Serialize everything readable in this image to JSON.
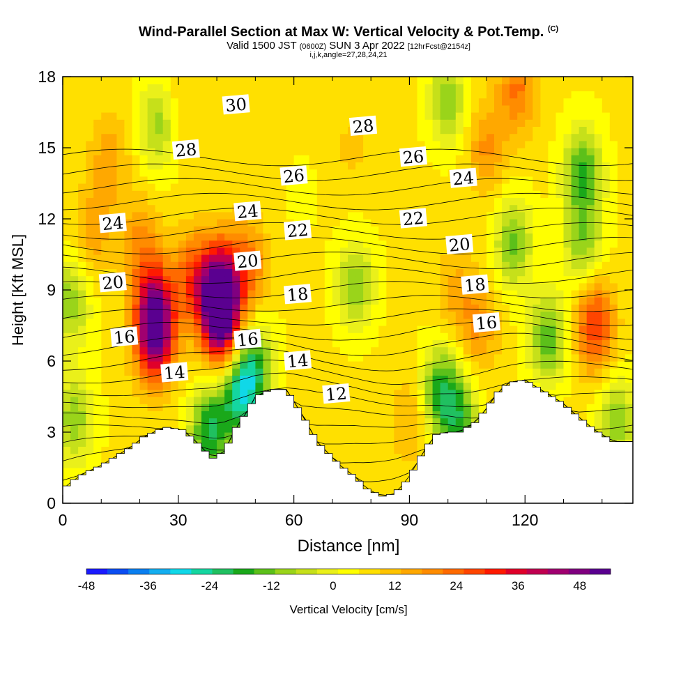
{
  "title": {
    "main": "Wind-Parallel Section at Max W: Vertical Velocity & Pot.Temp.",
    "copyright": "(C)",
    "valid_a": "Valid 1500 JST",
    "valid_b": "(0600Z)",
    "valid_c": "SUN 3 Apr 2022",
    "valid_d": "[12hrFcst@2154z]",
    "indices": "i,j,k,angle=27,28,24,21"
  },
  "chart_data": {
    "type": "heatmap",
    "title": "Wind-Parallel Section at Max W: Vertical Velocity & Pot.Temp.",
    "xlabel": "Distance [nm]",
    "ylabel": "Height [Kft MSL]",
    "xlim": [
      0,
      148
    ],
    "ylim": [
      0,
      18
    ],
    "x_ticks": [
      "0",
      "30",
      "60",
      "90",
      "120"
    ],
    "x_tick_values": [
      0,
      30,
      60,
      90,
      120
    ],
    "y_ticks": [
      "0",
      "3",
      "6",
      "9",
      "12",
      "15",
      "18"
    ],
    "y_tick_values": [
      0,
      3,
      6,
      9,
      12,
      15,
      18
    ],
    "colorbar": {
      "label": "Vertical Velocity [cm/s]",
      "range": [
        -48,
        54
      ],
      "tick_labels": [
        "-48",
        "-36",
        "-24",
        "-12",
        "0",
        "12",
        "24",
        "36",
        "48"
      ],
      "tick_values": [
        -48,
        -36,
        -24,
        -12,
        0,
        12,
        24,
        36,
        48
      ],
      "colors": [
        "#1a1aff",
        "#0b4df2",
        "#0a7ff0",
        "#13aef0",
        "#10d8e8",
        "#14d6a0",
        "#20c060",
        "#1aa81a",
        "#5cc01a",
        "#9ad41a",
        "#c6e01a",
        "#eaf01a",
        "#ffff00",
        "#ffe000",
        "#ffc400",
        "#ffa800",
        "#ff8c00",
        "#ff6a00",
        "#ff4500",
        "#ff1a00",
        "#e0002a",
        "#c00050",
        "#a00070",
        "#800080",
        "#5a0090"
      ]
    },
    "vertical_velocity_cells": [
      {
        "x": 24,
        "y": 7.0,
        "w": 44
      },
      {
        "x": 24,
        "y": 8.5,
        "w": 32
      },
      {
        "x": 41,
        "y": 7.8,
        "w": 52
      },
      {
        "x": 41,
        "y": 9.3,
        "w": 38
      },
      {
        "x": 34,
        "y": 9.5,
        "w": 26
      },
      {
        "x": 48,
        "y": 10.0,
        "w": 22
      },
      {
        "x": 20,
        "y": 11.0,
        "w": 18
      },
      {
        "x": 8,
        "y": 11.5,
        "w": 16
      },
      {
        "x": 12,
        "y": 14.5,
        "w": 16
      },
      {
        "x": 30,
        "y": 16.5,
        "w": 12
      },
      {
        "x": 110,
        "y": 15.0,
        "w": 18
      },
      {
        "x": 118,
        "y": 17.5,
        "w": 22
      },
      {
        "x": 138,
        "y": 7.5,
        "w": 30
      },
      {
        "x": 108,
        "y": 7.5,
        "w": 18
      },
      {
        "x": 102,
        "y": 9.0,
        "w": 14
      },
      {
        "x": 90,
        "y": 3.5,
        "w": 14
      },
      {
        "x": 2,
        "y": 8.5,
        "w": -10
      },
      {
        "x": 25,
        "y": 16.0,
        "w": -10
      },
      {
        "x": 46,
        "y": 4.5,
        "w": -22
      },
      {
        "x": 38,
        "y": 3.0,
        "w": -20
      },
      {
        "x": 50,
        "y": 5.8,
        "w": -14
      },
      {
        "x": 76,
        "y": 9.2,
        "w": -10
      },
      {
        "x": 98,
        "y": 4.8,
        "w": -16
      },
      {
        "x": 103,
        "y": 3.5,
        "w": -14
      },
      {
        "x": 100,
        "y": 17.0,
        "w": -10
      },
      {
        "x": 117,
        "y": 11.0,
        "w": -12
      },
      {
        "x": 126,
        "y": 7.0,
        "w": -14
      },
      {
        "x": 135,
        "y": 14.0,
        "w": -16
      },
      {
        "x": 135,
        "y": 11.0,
        "w": -10
      },
      {
        "x": 3,
        "y": 3.5,
        "w": -10
      },
      {
        "x": 144,
        "y": 3.5,
        "w": -10
      },
      {
        "x": 62,
        "y": 13.0,
        "w": 4
      },
      {
        "x": 75,
        "y": 15.0,
        "w": 10
      }
    ],
    "terrain": [
      [
        0,
        0.6
      ],
      [
        3,
        1.0
      ],
      [
        6,
        1.3
      ],
      [
        10,
        1.6
      ],
      [
        14,
        2.0
      ],
      [
        18,
        2.4
      ],
      [
        21,
        2.8
      ],
      [
        25,
        3.1
      ],
      [
        27,
        3.2
      ],
      [
        31,
        3.1
      ],
      [
        34,
        2.7
      ],
      [
        37,
        2.2
      ],
      [
        39,
        1.9
      ],
      [
        42,
        2.2
      ],
      [
        45,
        3.2
      ],
      [
        48,
        3.9
      ],
      [
        50,
        4.5
      ],
      [
        54,
        4.8
      ],
      [
        58,
        4.8
      ],
      [
        60,
        4.3
      ],
      [
        63,
        3.5
      ],
      [
        66,
        2.6
      ],
      [
        69,
        2.1
      ],
      [
        72,
        1.6
      ],
      [
        76,
        1.1
      ],
      [
        79,
        0.6
      ],
      [
        83,
        0.3
      ],
      [
        86,
        0.4
      ],
      [
        89,
        0.9
      ],
      [
        91,
        1.4
      ],
      [
        93,
        2.0
      ],
      [
        95,
        2.5
      ],
      [
        97,
        2.9
      ],
      [
        100,
        3.0
      ],
      [
        103,
        3.0
      ],
      [
        107,
        3.4
      ],
      [
        110,
        4.0
      ],
      [
        113,
        4.7
      ],
      [
        116,
        5.1
      ],
      [
        120,
        5.2
      ],
      [
        124,
        4.8
      ],
      [
        127,
        4.5
      ],
      [
        130,
        4.2
      ],
      [
        132,
        3.9
      ],
      [
        135,
        3.5
      ],
      [
        138,
        3.1
      ],
      [
        141,
        2.8
      ],
      [
        143,
        2.6
      ],
      [
        148,
        2.6
      ]
    ],
    "theta_contour_levels": [
      9,
      10,
      11,
      12,
      13,
      14,
      15,
      16,
      17,
      18,
      19,
      20,
      21,
      22,
      23,
      24,
      25,
      26,
      27,
      28,
      29,
      30,
      31,
      32
    ],
    "theta_contour_labels": [
      {
        "text": "30",
        "x": 45,
        "y": 16.8
      },
      {
        "text": "28",
        "x": 32,
        "y": 14.9
      },
      {
        "text": "28",
        "x": 78,
        "y": 15.9
      },
      {
        "text": "26",
        "x": 60,
        "y": 13.8
      },
      {
        "text": "26",
        "x": 91,
        "y": 14.6
      },
      {
        "text": "24",
        "x": 13,
        "y": 11.8
      },
      {
        "text": "24",
        "x": 48,
        "y": 12.3
      },
      {
        "text": "24",
        "x": 104,
        "y": 13.7
      },
      {
        "text": "22",
        "x": 61,
        "y": 11.5
      },
      {
        "text": "22",
        "x": 91,
        "y": 12.0
      },
      {
        "text": "20",
        "x": 13,
        "y": 9.3
      },
      {
        "text": "20",
        "x": 48,
        "y": 10.2
      },
      {
        "text": "20",
        "x": 103,
        "y": 10.9
      },
      {
        "text": "18",
        "x": 61,
        "y": 8.8
      },
      {
        "text": "18",
        "x": 107,
        "y": 9.2
      },
      {
        "text": "16",
        "x": 16,
        "y": 7.0
      },
      {
        "text": "16",
        "x": 48,
        "y": 6.9
      },
      {
        "text": "16",
        "x": 110,
        "y": 7.6
      },
      {
        "text": "14",
        "x": 29,
        "y": 5.5
      },
      {
        "text": "14",
        "x": 61,
        "y": 6.0
      },
      {
        "text": "12",
        "x": 71,
        "y": 4.6
      }
    ]
  }
}
